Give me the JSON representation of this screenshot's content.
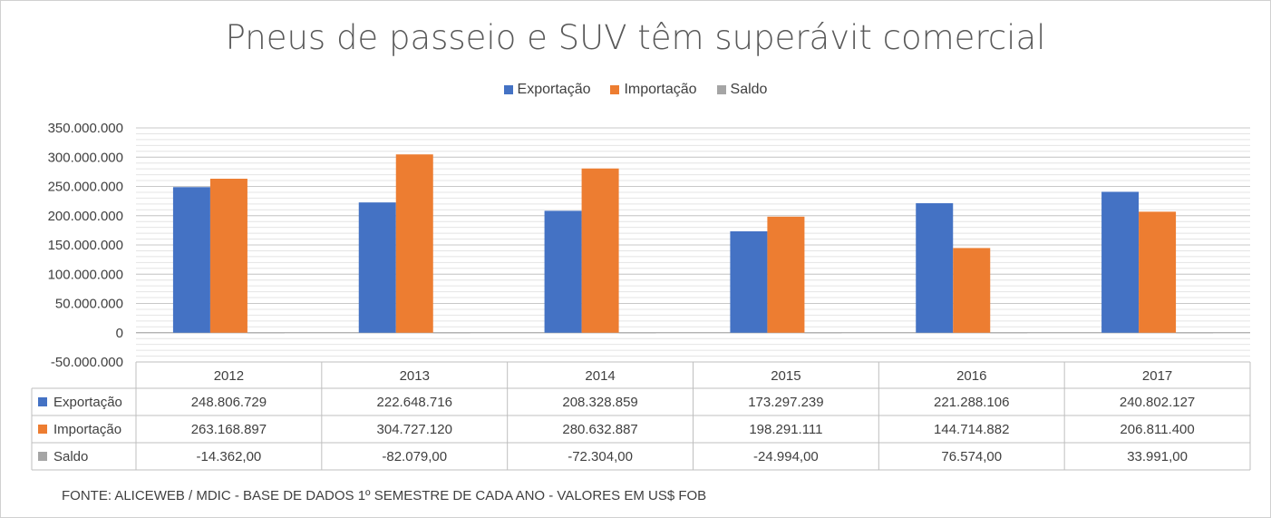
{
  "chart_data": {
    "type": "bar",
    "title": "Pneus de passeio e SUV têm superávit comercial",
    "categories": [
      "2012",
      "2013",
      "2014",
      "2015",
      "2016",
      "2017"
    ],
    "series": [
      {
        "name": "Exportação",
        "color": "#4472c4",
        "values": [
          248806729,
          222648716,
          208328859,
          173297239,
          221288106,
          240802127
        ],
        "labels": [
          "248.806.729",
          "222.648.716",
          "208.328.859",
          "173.297.239",
          "221.288.106",
          "240.802.127"
        ]
      },
      {
        "name": "Importação",
        "color": "#ed7d31",
        "values": [
          263168897,
          304727120,
          280632887,
          198291111,
          144714882,
          206811400
        ],
        "labels": [
          "263.168.897",
          "304.727.120",
          "280.632.887",
          "198.291.111",
          "144.714.882",
          "206.811.400"
        ]
      },
      {
        "name": "Saldo",
        "color": "#a5a5a5",
        "values": [
          -14362,
          -82079,
          -72304,
          -24994,
          76574,
          33991
        ],
        "labels": [
          "-14.362,00",
          "-82.079,00",
          "-72.304,00",
          "-24.994,00",
          "76.574,00",
          "33.991,00"
        ]
      }
    ],
    "ylim": [
      -50000000,
      350000000
    ],
    "yticks": [
      350000000,
      300000000,
      250000000,
      200000000,
      150000000,
      100000000,
      50000000,
      0,
      -50000000
    ],
    "ytick_labels": [
      "350.000.000",
      "300.000.000",
      "250.000.000",
      "200.000.000",
      "150.000.000",
      "100.000.000",
      "50.000.000",
      "0",
      "-50.000.000"
    ],
    "legend_position": "top",
    "data_table": true,
    "grid": true
  },
  "source": "FONTE: ALICEWEB / MDIC - BASE DE DADOS 1º SEMESTRE DE CADA ANO - VALORES EM US$ FOB"
}
